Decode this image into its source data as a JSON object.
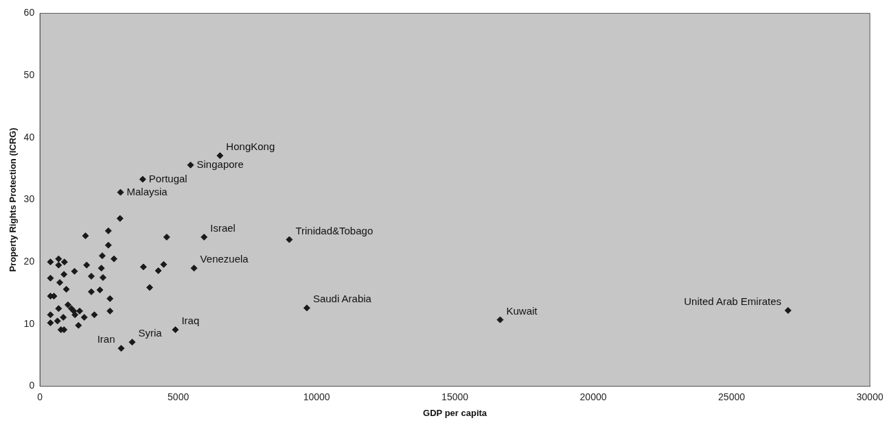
{
  "chart_data": {
    "type": "scatter",
    "xlabel": "GDP per capita",
    "ylabel": "Property Rights Protection (ICRG)",
    "x": [
      3714,
      2912,
      2895,
      1646,
      2473,
      4583,
      5933,
      2473,
      2253,
      2676,
      380,
      675,
      886,
      675,
      1688,
      2220,
      3739,
      4473,
      4279,
      5570,
      1249,
      869,
      1857,
      2279,
      380,
      717,
      3967,
      954,
      1857,
      2169,
      380,
      506,
      2532,
      1013,
      675,
      1139,
      1223,
      1435,
      380,
      1266,
      2532,
      1967,
      1603,
      844,
      633,
      380,
      1393,
      760,
      869,
      4895,
      3334,
      2937,
      5444,
      6507,
      9014,
      9647,
      16635,
      27042
    ],
    "values": [
      33.3,
      31.2,
      27.0,
      24.2,
      25.0,
      24.0,
      24.0,
      22.7,
      21.0,
      20.5,
      20.0,
      20.5,
      20.0,
      19.5,
      19.5,
      19.0,
      19.2,
      19.6,
      18.6,
      19.0,
      18.5,
      18.0,
      17.7,
      17.5,
      17.4,
      16.7,
      15.9,
      15.6,
      15.2,
      15.5,
      14.5,
      14.5,
      14.1,
      13.1,
      12.5,
      12.5,
      12.1,
      12.1,
      11.5,
      11.5,
      12.1,
      11.5,
      11.1,
      11.1,
      10.5,
      10.2,
      9.8,
      9.1,
      9.1,
      9.1,
      7.1,
      6.1,
      35.6,
      37.1,
      23.6,
      12.6,
      10.7,
      12.2
    ],
    "color": "#1a1a1a",
    "marker": "diamond",
    "grid": false,
    "legend": false,
    "xlim": [
      0,
      30000
    ],
    "xticks": [
      0,
      5000,
      10000,
      15000,
      20000,
      25000,
      30000
    ],
    "ylim": [
      0,
      60
    ],
    "yticks": [
      0,
      10,
      20,
      30,
      40,
      50,
      60
    ],
    "annotations": [
      {
        "text": "HongKong",
        "x": 6507,
        "y": 37.1
      },
      {
        "text": "Singapore",
        "x": 5444,
        "y": 35.6
      },
      {
        "text": "Portugal",
        "x": 3714,
        "y": 33.3
      },
      {
        "text": "Malaysia",
        "x": 2912,
        "y": 31.2
      },
      {
        "text": "Israel",
        "x": 5933,
        "y": 24.0
      },
      {
        "text": "Trinidad&Tobago",
        "x": 9014,
        "y": 23.6
      },
      {
        "text": "Venezuela",
        "x": 5570,
        "y": 19.0
      },
      {
        "text": "Saudi Arabia",
        "x": 9647,
        "y": 12.6
      },
      {
        "text": "United Arab Emirates",
        "x": 27042,
        "y": 12.2
      },
      {
        "text": "Kuwait",
        "x": 16635,
        "y": 10.7
      },
      {
        "text": "Iraq",
        "x": 4895,
        "y": 9.1
      },
      {
        "text": "Syria",
        "x": 3334,
        "y": 7.1
      },
      {
        "text": "Iran",
        "x": 2937,
        "y": 6.1
      }
    ]
  }
}
